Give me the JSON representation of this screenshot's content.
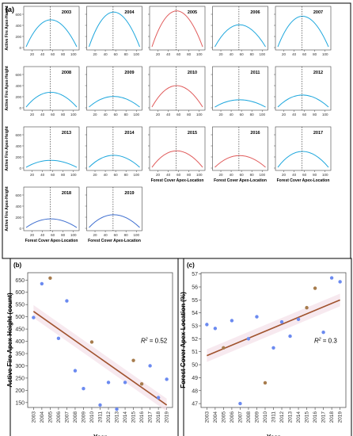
{
  "panel_a": {
    "label": "(a)",
    "years": [
      "2003",
      "2004",
      "2005",
      "2006",
      "2007",
      "2008",
      "2009",
      "2010",
      "2011",
      "2012",
      "2013",
      "2014",
      "2015",
      "2016",
      "2017",
      "2018",
      "2019"
    ],
    "apex_height": [
      500,
      640,
      660,
      410,
      565,
      280,
      205,
      400,
      145,
      230,
      140,
      230,
      310,
      225,
      300,
      170,
      245
    ],
    "highlight": [
      false,
      false,
      true,
      false,
      false,
      false,
      false,
      true,
      false,
      false,
      false,
      false,
      true,
      true,
      false,
      false,
      false
    ],
    "y_ticks": [
      0,
      200,
      400,
      600
    ],
    "x_ticks": [
      20,
      40,
      60,
      80,
      100
    ],
    "y_label": "Active Fire Apex-Height",
    "x_label": "Forest Cover Apex-Location",
    "colors": {
      "normal": "#1ea7dd",
      "highlight": "#e05a5a",
      "blue_alt": "#3f6fd0",
      "dashed": "#222222"
    }
  },
  "chart_data": [
    {
      "type": "scatter",
      "panel": "(b)",
      "x": [
        2003,
        2004,
        2005,
        2006,
        2007,
        2008,
        2009,
        2010,
        2011,
        2012,
        2013,
        2014,
        2015,
        2016,
        2017,
        2018,
        2019
      ],
      "y": [
        497,
        635,
        658,
        412,
        565,
        280,
        207,
        397,
        140,
        232,
        123,
        232,
        322,
        226,
        300,
        170,
        245
      ],
      "point_colors": [
        "#6b8af0",
        "#6b8af0",
        "#a77c4d",
        "#6b8af0",
        "#6b8af0",
        "#6b8af0",
        "#6b8af0",
        "#a77c4d",
        "#6b8af0",
        "#6b8af0",
        "#6b8af0",
        "#6b8af0",
        "#a77c4d",
        "#a77c4d",
        "#6b8af0",
        "#6b8af0",
        "#6b8af0"
      ],
      "fit": {
        "y_start": 522,
        "y_end": 140,
        "color": "#a0522d"
      },
      "r2": "= 0.52",
      "xlabel": "Year",
      "ylabel": "Active Fire Apex-Height (count)",
      "ylim": [
        130,
        680
      ],
      "yticks": [
        150,
        200,
        250,
        300,
        350,
        400,
        450,
        500,
        550,
        600,
        650
      ]
    },
    {
      "type": "scatter",
      "panel": "(c)",
      "x": [
        2003,
        2004,
        2005,
        2006,
        2007,
        2008,
        2009,
        2010,
        2011,
        2012,
        2013,
        2014,
        2015,
        2016,
        2017,
        2018,
        2019
      ],
      "y": [
        53.1,
        52.8,
        51.3,
        53.4,
        47.0,
        52.0,
        53.7,
        48.6,
        51.3,
        53.3,
        52.2,
        53.5,
        54.4,
        55.9,
        52.5,
        56.7,
        56.4
      ],
      "point_colors": [
        "#6b8af0",
        "#6b8af0",
        "#a77c4d",
        "#6b8af0",
        "#6b8af0",
        "#6b8af0",
        "#6b8af0",
        "#a77c4d",
        "#6b8af0",
        "#6b8af0",
        "#6b8af0",
        "#6b8af0",
        "#a77c4d",
        "#a77c4d",
        "#6b8af0",
        "#6b8af0",
        "#6b8af0"
      ],
      "fit": {
        "y_start": 50.7,
        "y_end": 55.0,
        "color": "#a0522d"
      },
      "r2": "= 0.3",
      "xlabel": "Year",
      "ylabel": "Forest Cover Apex-Location (%)",
      "ylim": [
        46.7,
        57.1
      ],
      "yticks": [
        47,
        48,
        49,
        50,
        51,
        52,
        53,
        54,
        55,
        56,
        57
      ]
    }
  ],
  "x_tick_labels": [
    "2003",
    "2004",
    "2005",
    "2006",
    "2007",
    "2008",
    "2009",
    "2010",
    "2011",
    "2012",
    "2013",
    "2014",
    "2015",
    "2016",
    "2017",
    "2018",
    "2019"
  ]
}
